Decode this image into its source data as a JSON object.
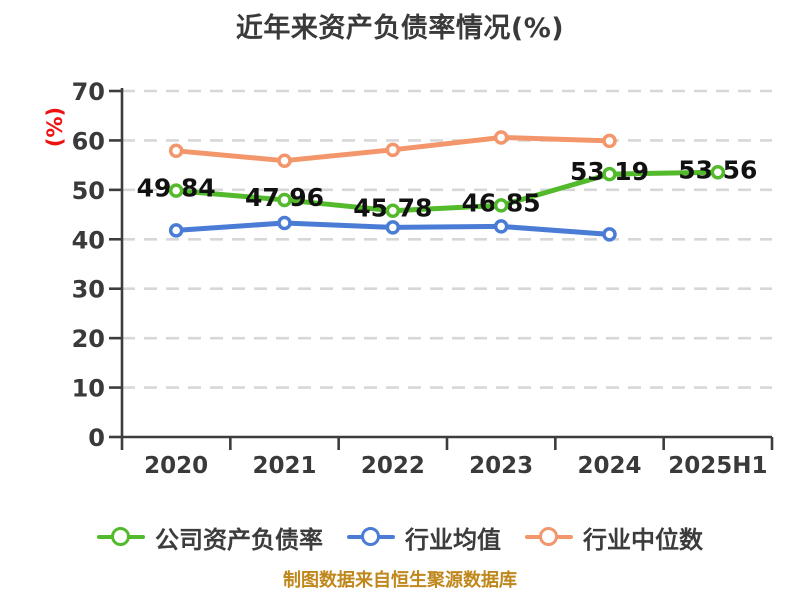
{
  "chart_data": {
    "type": "line",
    "title": "近年来资产负债率情况(%)",
    "ylabel": "(%)",
    "footer": "制图数据来自恒生聚源数据库",
    "categories": [
      "2020",
      "2021",
      "2022",
      "2023",
      "2024",
      "2025H1"
    ],
    "ylim": [
      0,
      70
    ],
    "ytick_step": 10,
    "grid": "horizontal-dashed",
    "legend_position": "bottom",
    "series": [
      {
        "name": "公司资产负债率",
        "color": "#52ba2b",
        "show_labels": true,
        "values": [
          49.84,
          47.96,
          45.78,
          46.85,
          53.19,
          53.56
        ]
      },
      {
        "name": "行业均值",
        "color": "#4a7cd6",
        "show_labels": false,
        "values": [
          41.8,
          43.3,
          42.4,
          42.6,
          41.0,
          null
        ]
      },
      {
        "name": "行业中位数",
        "color": "#f3966b",
        "show_labels": false,
        "values": [
          57.9,
          55.9,
          58.1,
          60.6,
          59.9,
          null
        ]
      }
    ]
  },
  "colors": {
    "background": "#ffffff",
    "title": "#3a3a3a",
    "axis": "#3d3d3d",
    "tick_label": "#3a3a3a",
    "grid": "#d7d7d7",
    "ylabel": "#ee1111",
    "data_label": "#111111",
    "footer": "#c0871c"
  }
}
